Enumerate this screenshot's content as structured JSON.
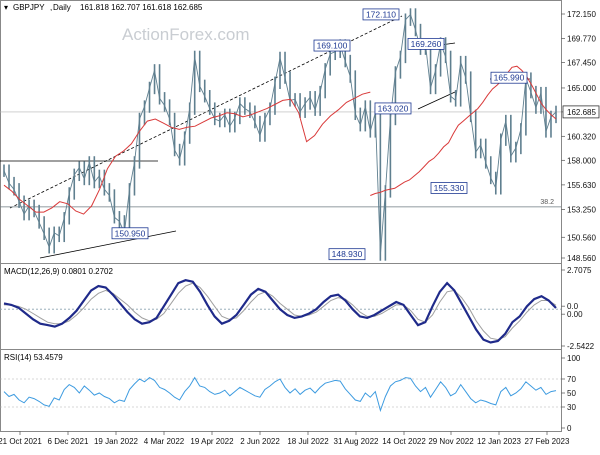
{
  "chart_data": {
    "symbol": "GBPJPY",
    "timeframe": "Daily",
    "watermark": "ActionForex.com",
    "ohlc_header": "161.818 162.707 161.618 162.685",
    "last_price": 162.685,
    "colors": {
      "price": "#5f7f8f",
      "moving_average": "#d93a3a",
      "macd": "#1f2a8a",
      "signal": "#a0a0a0",
      "rsi": "#3d9be0",
      "label_box": "#1f3a93",
      "last_price_box": "#ffffff"
    },
    "price_panel": {
      "type": "line",
      "ylim": [
        148.56,
        172.15
      ],
      "y_ticks": [
        "172.150",
        "169.770",
        "167.450",
        "165.000",
        "162.685",
        "160.320",
        "158.000",
        "155.630",
        "153.250",
        "150.560",
        "148.560"
      ],
      "closes": [
        157.0,
        155.8,
        155.2,
        154.0,
        152.8,
        153.6,
        153.1,
        152.0,
        150.9,
        149.6,
        151.0,
        150.7,
        152.4,
        154.8,
        156.6,
        157.3,
        156.2,
        157.8,
        155.9,
        156.5,
        155.2,
        154.6,
        152.5,
        152.1,
        151.0,
        155.2,
        157.8,
        162.0,
        163.2,
        165.0,
        166.7,
        164.0,
        163.3,
        162.0,
        159.0,
        158.1,
        160.2,
        163.0,
        168.0,
        165.2,
        164.2,
        163.0,
        162.0,
        161.8,
        162.4,
        161.3,
        162.1,
        163.5,
        163.0,
        162.7,
        161.7,
        160.4,
        162.0,
        163.0,
        165.5,
        167.9,
        166.0,
        163.8,
        163.9,
        162.7,
        163.5,
        164.1,
        162.9,
        164.6,
        166.8,
        168.3,
        168.5,
        169.1,
        167.6,
        166.1,
        162.5,
        161.4,
        163.2,
        160.8,
        162.6,
        148.9,
        155.0,
        162.0,
        166.5,
        168.0,
        171.6,
        172.1,
        170.6,
        168.8,
        169.2,
        165.0,
        166.7,
        169.3,
        168.0,
        164.2,
        163.8,
        167.5,
        166.0,
        162.3,
        158.8,
        159.5,
        157.8,
        156.3,
        155.3,
        160.0,
        161.8,
        158.4,
        159.2,
        161.0,
        165.9,
        164.6,
        163.1,
        164.5,
        160.8,
        162.2,
        162.685
      ],
      "moving_average": [
        154.6,
        154.8,
        154.9,
        155.1,
        155.2,
        155.3,
        155.6,
        155.9,
        156.1,
        156.5,
        156.9,
        157.4,
        157.9,
        158.2,
        158.7,
        159.3,
        159.7,
        160.6,
        161.4,
        161.8,
        162.2,
        162.6,
        163.0,
        163.6,
        164.3,
        164.9,
        165.3,
        165.8,
        166.4,
        167.0,
        167.1,
        166.7,
        166.1,
        165.3,
        164.4,
        163.5,
        162.9,
        162.4,
        162.0
      ],
      "moving_average_start_index": 73,
      "annotations": [
        {
          "label": "172.110",
          "value": 172.11
        },
        {
          "label": "169.100",
          "value": 169.1
        },
        {
          "label": "169.260",
          "value": 169.26
        },
        {
          "label": "165.990",
          "value": 165.99
        },
        {
          "label": "163.020",
          "value": 163.02
        },
        {
          "label": "155.330",
          "value": 155.33
        },
        {
          "label": "150.950",
          "value": 150.95
        },
        {
          "label": "148.930",
          "value": 148.93
        },
        {
          "label": "38.2",
          "value": 153.5
        }
      ]
    },
    "macd_panel": {
      "title": "MACD(12,26,9) 0.0801 0.2702",
      "ylim": [
        -2.5422,
        2.7075
      ],
      "y_ticks": [
        "2.7075",
        "0.0",
        "0.00",
        "-2.5422"
      ],
      "macd": [
        0.4,
        0.3,
        0.1,
        -0.3,
        -0.7,
        -1.0,
        -1.1,
        -1.2,
        -1.0,
        -0.6,
        -0.1,
        0.6,
        1.3,
        1.6,
        1.5,
        1.0,
        0.4,
        -0.2,
        -0.7,
        -1.0,
        -0.9,
        -0.6,
        0.2,
        1.0,
        1.8,
        2.0,
        1.9,
        1.2,
        0.3,
        -0.5,
        -1.0,
        -0.8,
        -0.4,
        0.3,
        1.0,
        1.4,
        1.2,
        0.6,
        0.0,
        -0.4,
        -0.6,
        -0.5,
        -0.3,
        0.0,
        0.5,
        0.9,
        1.0,
        0.6,
        0.0,
        -0.5,
        -0.6,
        -0.4,
        -0.1,
        0.2,
        0.5,
        0.3,
        -0.4,
        -1.1,
        -0.9,
        0.2,
        1.2,
        1.8,
        1.3,
        0.4,
        -0.5,
        -1.4,
        -2.1,
        -2.3,
        -2.2,
        -1.7,
        -0.9,
        -0.5,
        0.2,
        0.7,
        0.9,
        0.6,
        0.08
      ],
      "signal": [
        0.3,
        0.3,
        0.2,
        0.0,
        -0.3,
        -0.6,
        -0.9,
        -1.0,
        -1.0,
        -0.8,
        -0.4,
        0.1,
        0.7,
        1.1,
        1.3,
        1.1,
        0.7,
        0.3,
        -0.2,
        -0.6,
        -0.8,
        -0.7,
        -0.3,
        0.4,
        1.1,
        1.6,
        1.8,
        1.5,
        0.9,
        0.2,
        -0.5,
        -0.7,
        -0.6,
        -0.1,
        0.5,
        1.0,
        1.2,
        0.9,
        0.4,
        0.0,
        -0.4,
        -0.5,
        -0.4,
        -0.2,
        0.2,
        0.6,
        0.8,
        0.7,
        0.3,
        -0.2,
        -0.5,
        -0.5,
        -0.3,
        0.0,
        0.3,
        0.3,
        -0.1,
        -0.7,
        -0.9,
        -0.4,
        0.5,
        1.2,
        1.3,
        0.8,
        0.1,
        -0.8,
        -1.5,
        -2.0,
        -2.1,
        -1.9,
        -1.3,
        -0.8,
        -0.2,
        0.3,
        0.6,
        0.6,
        0.27
      ]
    },
    "rsi_panel": {
      "title": "RSI(14) 53.4579",
      "ylim": [
        0,
        100
      ],
      "y_ticks": [
        "100",
        "70",
        "50",
        "30",
        "0"
      ],
      "values": [
        52,
        45,
        48,
        40,
        36,
        44,
        42,
        38,
        33,
        31,
        43,
        40,
        55,
        62,
        58,
        50,
        60,
        54,
        47,
        50,
        45,
        42,
        36,
        40,
        38,
        55,
        63,
        70,
        66,
        72,
        68,
        58,
        55,
        50,
        44,
        40,
        52,
        60,
        72,
        60,
        58,
        52,
        48,
        50,
        54,
        46,
        52,
        58,
        54,
        50,
        46,
        44,
        55,
        60,
        66,
        70,
        58,
        50,
        56,
        48,
        54,
        57,
        50,
        58,
        64,
        66,
        68,
        67,
        56,
        48,
        40,
        38,
        50,
        44,
        52,
        25,
        45,
        60,
        66,
        68,
        72,
        71,
        60,
        52,
        58,
        44,
        55,
        66,
        58,
        46,
        50,
        62,
        52,
        42,
        36,
        40,
        38,
        35,
        33,
        52,
        58,
        46,
        50,
        56,
        66,
        60,
        54,
        58,
        48,
        52,
        53.4579
      ]
    },
    "x_labels": [
      "21 Oct 2021",
      "6 Dec 2021",
      "19 Jan 2022",
      "4 Mar 2022",
      "19 Apr 2022",
      "2 Jun 2022",
      "18 Jul 2022",
      "31 Aug 2022",
      "14 Oct 2022",
      "29 Nov 2022",
      "12 Jan 2023",
      "27 Feb 2023"
    ]
  }
}
